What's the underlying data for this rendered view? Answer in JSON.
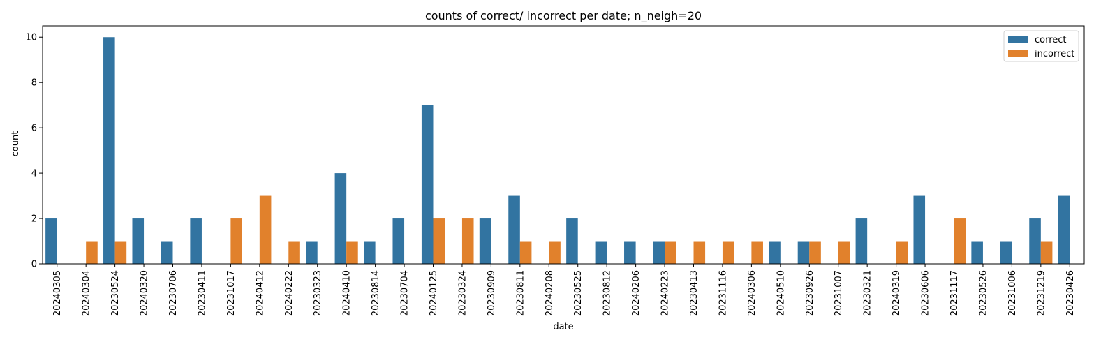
{
  "chart_data": {
    "type": "bar",
    "title": "counts of correct/ incorrect per date; n_neigh=20",
    "xlabel": "date",
    "ylabel": "count",
    "ylim": [
      0,
      10.5
    ],
    "yticks": [
      0,
      2,
      4,
      6,
      8,
      10
    ],
    "grid": false,
    "legend_position": "top-right",
    "categories": [
      "20240305",
      "20240304",
      "20230524",
      "20240320",
      "20230706",
      "20230411",
      "20231017",
      "20240412",
      "20240222",
      "20230323",
      "20240410",
      "20230814",
      "20230704",
      "20240125",
      "20230324",
      "20230909",
      "20230811",
      "20240208",
      "20230525",
      "20230812",
      "20240206",
      "20240223",
      "20230413",
      "20231116",
      "20240306",
      "20240510",
      "20230926",
      "20231007",
      "20230321",
      "20240319",
      "20230606",
      "20231117",
      "20230526",
      "20231006",
      "20231219",
      "20230426"
    ],
    "series": [
      {
        "name": "correct",
        "color": "#3274a1",
        "values": [
          2,
          0,
          10,
          2,
          1,
          2,
          0,
          0,
          0,
          1,
          4,
          1,
          2,
          7,
          0,
          2,
          3,
          0,
          2,
          1,
          1,
          1,
          0,
          0,
          0,
          1,
          1,
          0,
          2,
          0,
          3,
          0,
          1,
          1,
          2,
          3
        ]
      },
      {
        "name": "incorrect",
        "color": "#e1812c",
        "values": [
          0,
          1,
          1,
          0,
          0,
          0,
          2,
          3,
          1,
          0,
          1,
          0,
          0,
          2,
          2,
          0,
          1,
          1,
          0,
          0,
          0,
          1,
          1,
          1,
          1,
          0,
          1,
          1,
          0,
          1,
          0,
          2,
          0,
          0,
          1,
          0
        ]
      }
    ]
  }
}
